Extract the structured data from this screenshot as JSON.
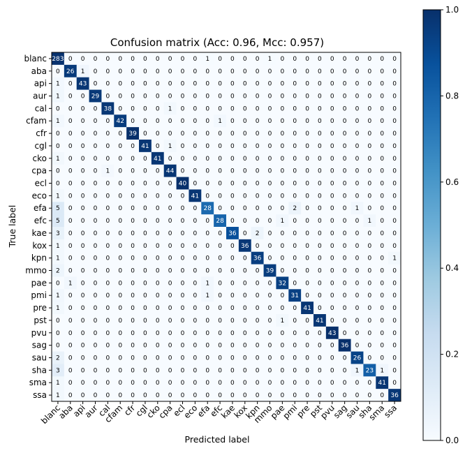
{
  "chart_data": {
    "type": "heatmap",
    "title": "Confusion matrix (Acc: 0.96, Mcc: 0.957)",
    "xlabel": "Predicted label",
    "ylabel": "True label",
    "colormap": [
      "#f7fbff",
      "#deebf7",
      "#c6dbef",
      "#9ecae1",
      "#6baed6",
      "#4292c6",
      "#2171b5",
      "#08519c",
      "#08306b"
    ],
    "colorbar": {
      "range": [
        0.0,
        1.0
      ],
      "ticks": [
        "0.0",
        "0.2",
        "0.4",
        "0.6",
        "0.8",
        "1.0"
      ]
    },
    "labels": [
      "blanc",
      "aba",
      "api",
      "aur",
      "cal",
      "cfam",
      "cfr",
      "cgl",
      "cko",
      "cpa",
      "ecl",
      "eco",
      "efa",
      "efc",
      "kae",
      "kox",
      "kpn",
      "mmo",
      "pae",
      "pmi",
      "pre",
      "pst",
      "pvu",
      "sag",
      "sau",
      "sha",
      "sma",
      "ssa"
    ],
    "matrix": [
      [
        283,
        0,
        0,
        0,
        0,
        0,
        0,
        0,
        0,
        0,
        0,
        0,
        1,
        0,
        0,
        0,
        0,
        1,
        0,
        0,
        0,
        0,
        0,
        0,
        0,
        0,
        0,
        0
      ],
      [
        0,
        26,
        1,
        0,
        0,
        0,
        0,
        0,
        0,
        0,
        0,
        0,
        0,
        0,
        0,
        0,
        0,
        0,
        0,
        0,
        0,
        0,
        0,
        0,
        0,
        0,
        0,
        0
      ],
      [
        1,
        0,
        43,
        0,
        0,
        0,
        0,
        0,
        0,
        0,
        0,
        0,
        0,
        0,
        0,
        0,
        0,
        0,
        0,
        0,
        0,
        0,
        0,
        0,
        0,
        0,
        0,
        0
      ],
      [
        1,
        0,
        0,
        29,
        0,
        0,
        0,
        0,
        0,
        0,
        0,
        0,
        0,
        0,
        0,
        0,
        0,
        0,
        0,
        0,
        0,
        0,
        0,
        0,
        0,
        0,
        0,
        0
      ],
      [
        0,
        0,
        0,
        0,
        38,
        0,
        0,
        0,
        0,
        1,
        0,
        0,
        0,
        0,
        0,
        0,
        0,
        0,
        0,
        0,
        0,
        0,
        0,
        0,
        0,
        0,
        0,
        0
      ],
      [
        1,
        0,
        0,
        0,
        0,
        42,
        0,
        0,
        0,
        0,
        0,
        0,
        0,
        1,
        0,
        0,
        0,
        0,
        0,
        0,
        0,
        0,
        0,
        0,
        0,
        0,
        0,
        0
      ],
      [
        0,
        0,
        0,
        0,
        0,
        0,
        39,
        0,
        0,
        0,
        0,
        0,
        0,
        0,
        0,
        0,
        0,
        0,
        0,
        0,
        0,
        0,
        0,
        0,
        0,
        0,
        0,
        0
      ],
      [
        0,
        0,
        0,
        0,
        0,
        0,
        0,
        41,
        0,
        1,
        0,
        0,
        0,
        0,
        0,
        0,
        0,
        0,
        0,
        0,
        0,
        0,
        0,
        0,
        0,
        0,
        0,
        0
      ],
      [
        1,
        0,
        0,
        0,
        0,
        0,
        0,
        0,
        41,
        0,
        0,
        0,
        0,
        0,
        0,
        0,
        0,
        0,
        0,
        0,
        0,
        0,
        0,
        0,
        0,
        0,
        0,
        0
      ],
      [
        0,
        0,
        0,
        0,
        1,
        0,
        0,
        0,
        0,
        44,
        0,
        0,
        0,
        0,
        0,
        0,
        0,
        0,
        0,
        0,
        0,
        0,
        0,
        0,
        0,
        0,
        0,
        0
      ],
      [
        0,
        0,
        0,
        0,
        0,
        0,
        0,
        0,
        0,
        0,
        40,
        0,
        0,
        0,
        0,
        0,
        0,
        0,
        0,
        0,
        0,
        0,
        0,
        0,
        0,
        0,
        0,
        0
      ],
      [
        1,
        0,
        0,
        0,
        0,
        0,
        0,
        0,
        0,
        0,
        0,
        41,
        0,
        0,
        0,
        0,
        0,
        0,
        0,
        0,
        0,
        0,
        0,
        0,
        0,
        0,
        0,
        0
      ],
      [
        5,
        0,
        0,
        0,
        0,
        0,
        0,
        0,
        0,
        0,
        0,
        0,
        28,
        0,
        0,
        0,
        0,
        0,
        0,
        2,
        0,
        0,
        0,
        0,
        1,
        0,
        0,
        0
      ],
      [
        5,
        0,
        0,
        0,
        0,
        0,
        0,
        0,
        0,
        0,
        0,
        0,
        0,
        28,
        0,
        0,
        0,
        0,
        1,
        0,
        0,
        0,
        0,
        0,
        0,
        1,
        0,
        0
      ],
      [
        3,
        0,
        0,
        0,
        0,
        0,
        0,
        0,
        0,
        0,
        0,
        0,
        0,
        0,
        36,
        0,
        2,
        0,
        0,
        0,
        0,
        0,
        0,
        0,
        0,
        0,
        0,
        0
      ],
      [
        1,
        0,
        0,
        0,
        0,
        0,
        0,
        0,
        0,
        0,
        0,
        0,
        0,
        0,
        0,
        36,
        0,
        0,
        0,
        0,
        0,
        0,
        0,
        0,
        0,
        0,
        0,
        0
      ],
      [
        1,
        0,
        0,
        0,
        0,
        0,
        0,
        0,
        0,
        0,
        0,
        0,
        0,
        0,
        0,
        0,
        36,
        0,
        0,
        0,
        0,
        0,
        0,
        0,
        0,
        0,
        0,
        1
      ],
      [
        2,
        0,
        0,
        0,
        0,
        0,
        0,
        0,
        0,
        0,
        0,
        0,
        0,
        0,
        0,
        0,
        0,
        39,
        0,
        0,
        0,
        0,
        0,
        0,
        0,
        0,
        0,
        0
      ],
      [
        0,
        1,
        0,
        0,
        0,
        0,
        0,
        0,
        0,
        0,
        0,
        0,
        1,
        0,
        0,
        0,
        0,
        0,
        32,
        0,
        0,
        0,
        0,
        0,
        0,
        0,
        0,
        0
      ],
      [
        1,
        0,
        0,
        0,
        0,
        0,
        0,
        0,
        0,
        0,
        0,
        0,
        1,
        0,
        0,
        0,
        0,
        0,
        0,
        31,
        0,
        0,
        0,
        0,
        0,
        0,
        0,
        0
      ],
      [
        1,
        0,
        0,
        0,
        0,
        0,
        0,
        0,
        0,
        0,
        0,
        0,
        0,
        0,
        0,
        0,
        0,
        0,
        0,
        0,
        41,
        0,
        0,
        0,
        0,
        0,
        0,
        0
      ],
      [
        0,
        0,
        0,
        0,
        0,
        0,
        0,
        0,
        0,
        0,
        0,
        0,
        0,
        0,
        0,
        0,
        0,
        0,
        1,
        0,
        0,
        41,
        0,
        0,
        0,
        0,
        0,
        0
      ],
      [
        0,
        0,
        0,
        0,
        0,
        0,
        0,
        0,
        0,
        0,
        0,
        0,
        0,
        0,
        0,
        0,
        0,
        0,
        0,
        0,
        0,
        0,
        43,
        0,
        0,
        0,
        0,
        0
      ],
      [
        0,
        0,
        0,
        0,
        0,
        0,
        0,
        0,
        0,
        0,
        0,
        0,
        0,
        0,
        0,
        0,
        0,
        0,
        0,
        0,
        0,
        0,
        0,
        36,
        0,
        0,
        0,
        0
      ],
      [
        2,
        0,
        0,
        0,
        0,
        0,
        0,
        0,
        0,
        0,
        0,
        0,
        0,
        0,
        0,
        0,
        0,
        0,
        0,
        0,
        0,
        0,
        0,
        0,
        26,
        0,
        0,
        0
      ],
      [
        3,
        0,
        0,
        0,
        0,
        0,
        0,
        0,
        0,
        0,
        0,
        0,
        0,
        0,
        0,
        0,
        0,
        0,
        0,
        0,
        0,
        0,
        0,
        0,
        1,
        23,
        1,
        0
      ],
      [
        1,
        0,
        0,
        0,
        0,
        0,
        0,
        0,
        0,
        0,
        0,
        0,
        0,
        0,
        0,
        0,
        0,
        0,
        0,
        0,
        0,
        0,
        0,
        0,
        0,
        0,
        41,
        0
      ],
      [
        1,
        0,
        0,
        0,
        0,
        0,
        0,
        0,
        0,
        0,
        0,
        0,
        0,
        0,
        0,
        0,
        0,
        0,
        0,
        0,
        0,
        0,
        0,
        0,
        0,
        0,
        0,
        36
      ]
    ]
  }
}
